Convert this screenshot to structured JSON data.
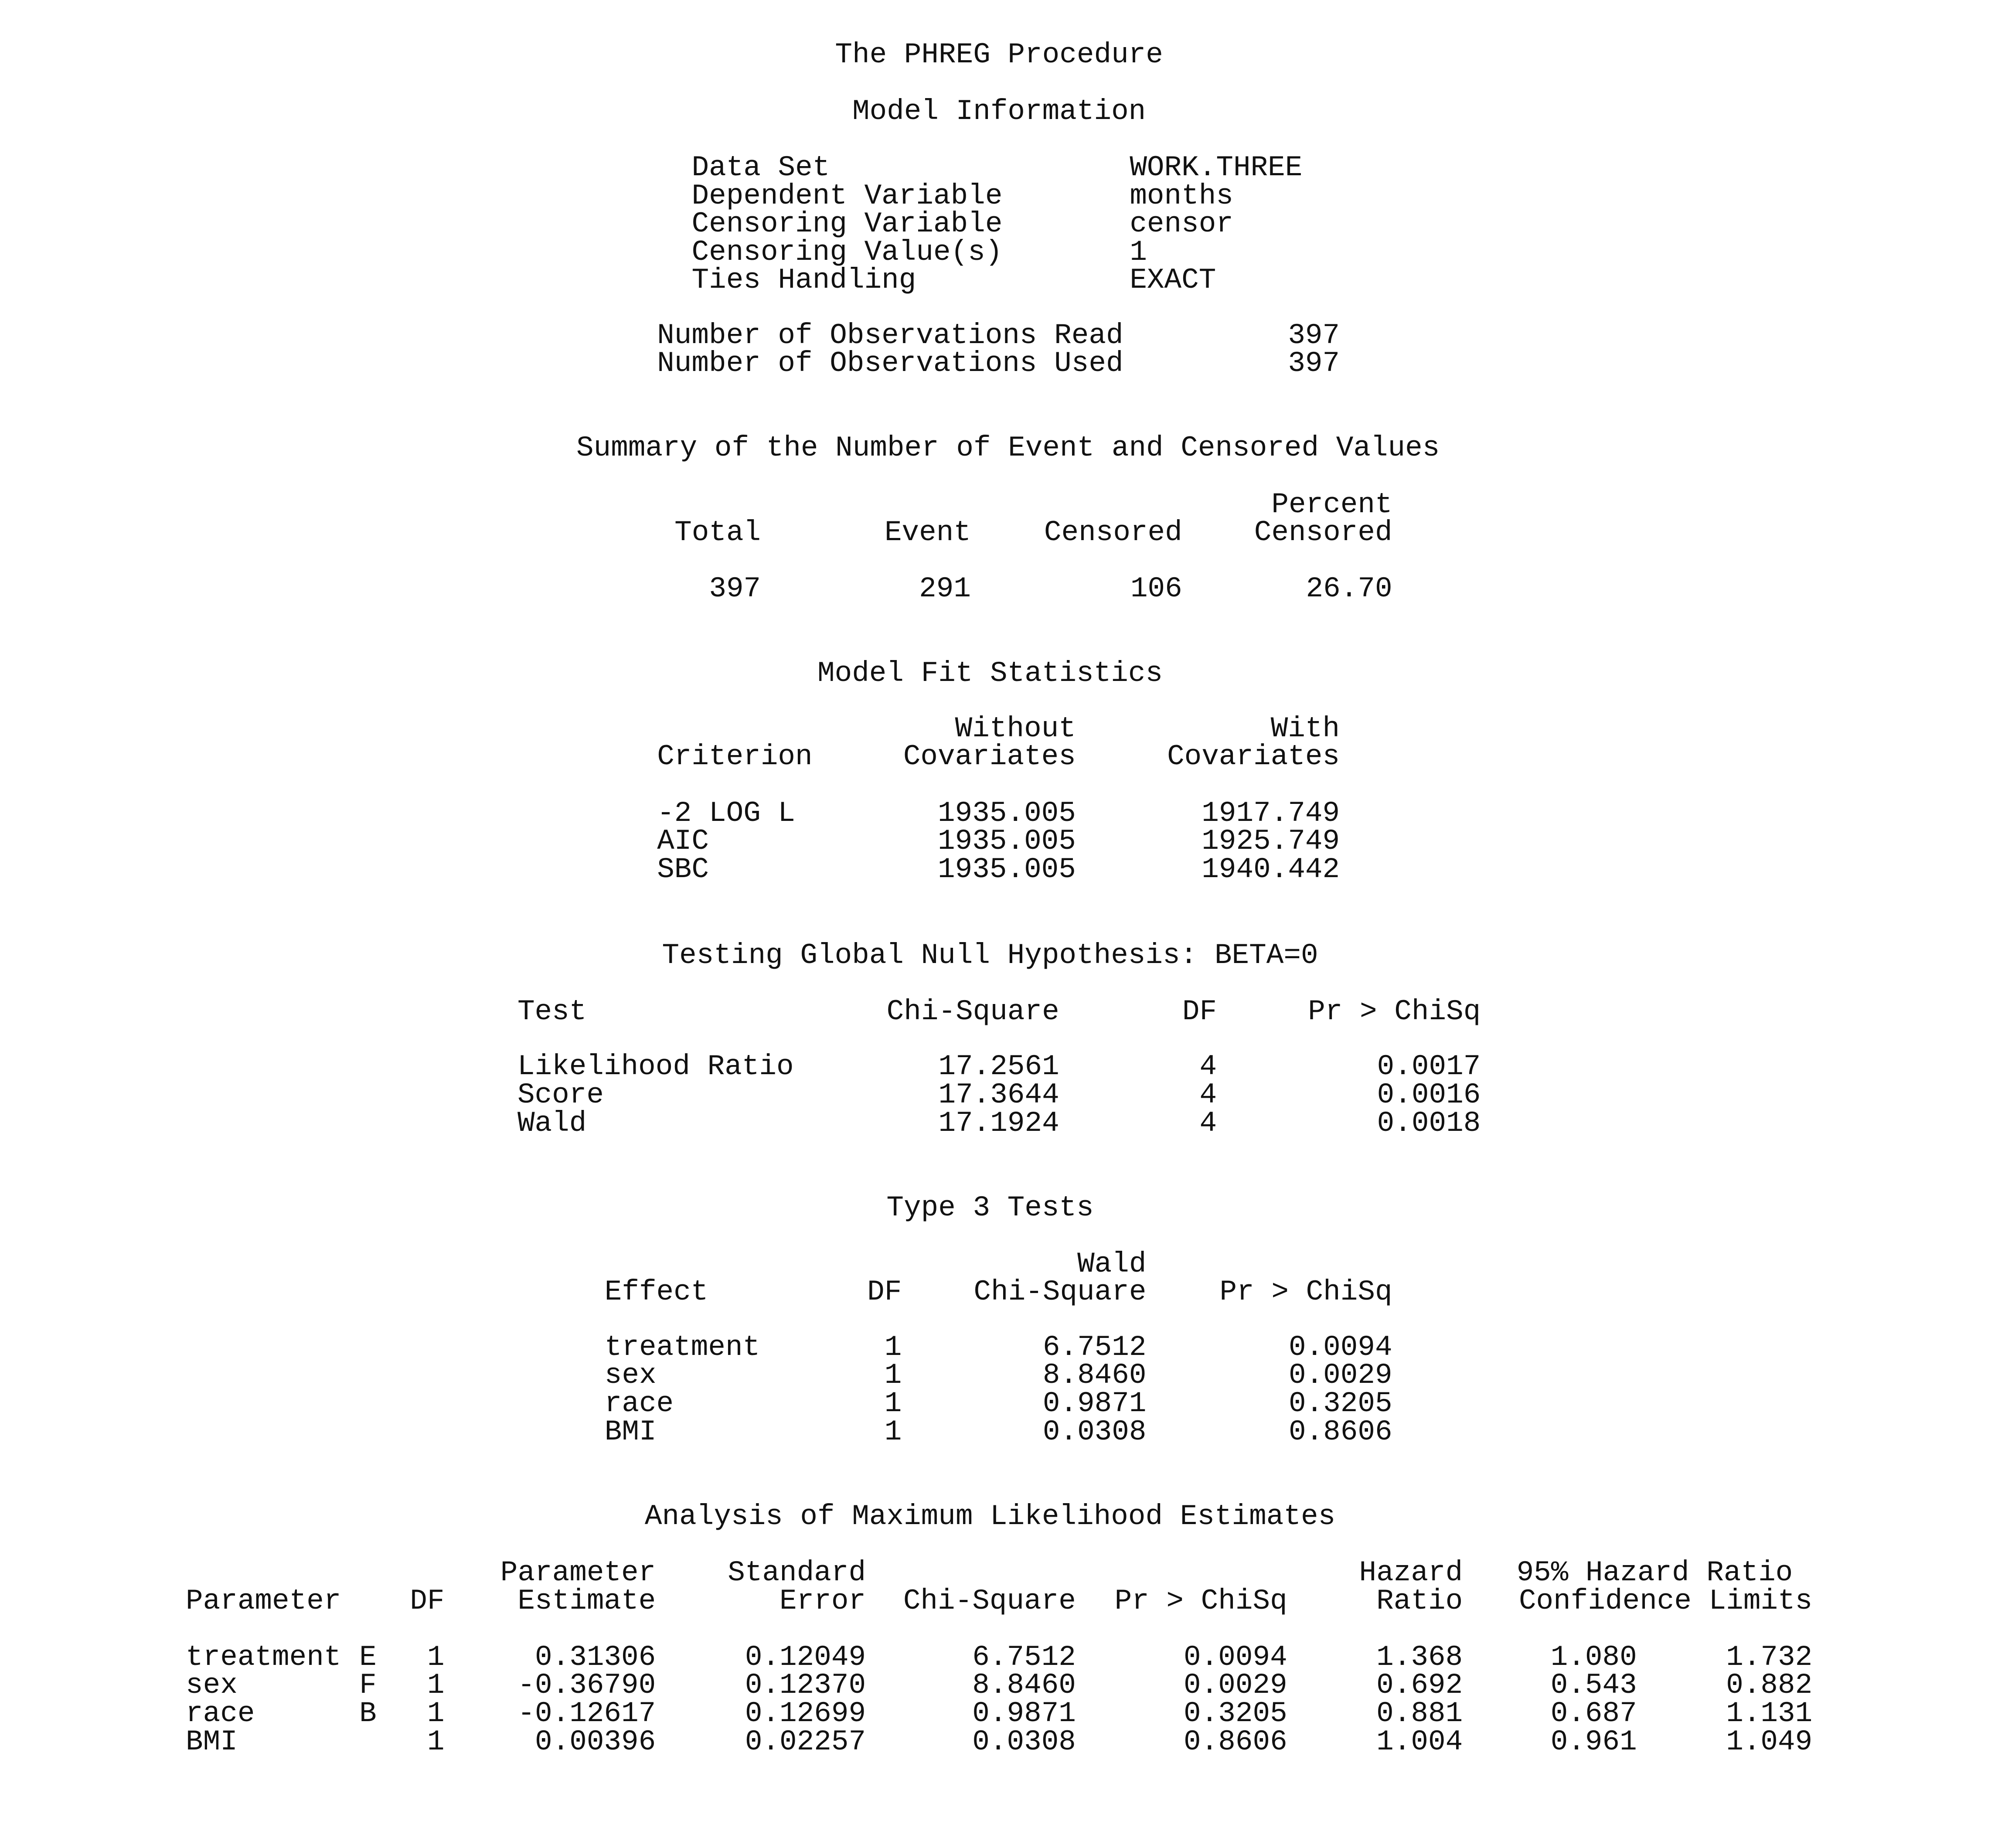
{
  "title": "The PHREG Procedure",
  "model_info": {
    "heading": "Model Information",
    "rows": [
      {
        "label": "Data Set",
        "value": "WORK.THREE"
      },
      {
        "label": "Dependent Variable",
        "value": "months"
      },
      {
        "label": "Censoring Variable",
        "value": "censor"
      },
      {
        "label": "Censoring Value(s)",
        "value": "1"
      },
      {
        "label": "Ties Handling",
        "value": "EXACT"
      }
    ],
    "obs": [
      {
        "label": "Number of Observations Read",
        "value": "397"
      },
      {
        "label": "Number of Observations Used",
        "value": "397"
      }
    ]
  },
  "summary": {
    "heading": "Summary of the Number of Event and Censored Values",
    "headers": {
      "total": "Total",
      "event": "Event",
      "censored": "Censored",
      "percent_top": "Percent",
      "percent_bottom": "Censored"
    },
    "values": {
      "total": "397",
      "event": "291",
      "censored": "106",
      "percent": "26.70"
    }
  },
  "fit": {
    "heading": "Model Fit Statistics",
    "headers": {
      "criterion": "Criterion",
      "without_top": "Without",
      "without_bottom": "Covariates",
      "with_top": "With",
      "with_bottom": "Covariates"
    },
    "rows": [
      {
        "criterion": "-2 LOG L",
        "without": "1935.005",
        "with": "1917.749"
      },
      {
        "criterion": "AIC",
        "without": "1935.005",
        "with": "1925.749"
      },
      {
        "criterion": "SBC",
        "without": "1935.005",
        "with": "1940.442"
      }
    ]
  },
  "global": {
    "heading": "Testing Global Null Hypothesis: BETA=0",
    "headers": {
      "test": "Test",
      "chisq": "Chi-Square",
      "df": "DF",
      "p": "Pr > ChiSq"
    },
    "rows": [
      {
        "test": "Likelihood Ratio",
        "chisq": "17.2561",
        "df": "4",
        "p": "0.0017"
      },
      {
        "test": "Score",
        "chisq": "17.3644",
        "df": "4",
        "p": "0.0016"
      },
      {
        "test": "Wald",
        "chisq": "17.1924",
        "df": "4",
        "p": "0.0018"
      }
    ]
  },
  "type3": {
    "heading": "Type 3 Tests",
    "headers": {
      "effect": "Effect",
      "df": "DF",
      "chisq_top": "Wald",
      "chisq_bottom": "Chi-Square",
      "p": "Pr > ChiSq"
    },
    "rows": [
      {
        "effect": "treatment",
        "df": "1",
        "chisq": "6.7512",
        "p": "0.0094"
      },
      {
        "effect": "sex",
        "df": "1",
        "chisq": "8.8460",
        "p": "0.0029"
      },
      {
        "effect": "race",
        "df": "1",
        "chisq": "0.9871",
        "p": "0.3205"
      },
      {
        "effect": "BMI",
        "df": "1",
        "chisq": "0.0308",
        "p": "0.8606"
      }
    ]
  },
  "mle": {
    "heading": "Analysis of Maximum Likelihood Estimates",
    "headers": {
      "parameter": "Parameter",
      "df": "DF",
      "est_top": "Parameter",
      "est_bottom": "Estimate",
      "se_top": "Standard",
      "se_bottom": "Error",
      "chisq": "Chi-Square",
      "p": "Pr > ChiSq",
      "hr_top": "Hazard",
      "hr_bottom": "Ratio",
      "ci_top": "95% Hazard Ratio",
      "ci_bottom": "Confidence Limits"
    },
    "rows": [
      {
        "parameter": "treatment",
        "level": "E",
        "df": "1",
        "est": "0.31306",
        "se": "0.12049",
        "chisq": "6.7512",
        "p": "0.0094",
        "hr": "1.368",
        "lcl": "1.080",
        "ucl": "1.732"
      },
      {
        "parameter": "sex",
        "level": "F",
        "df": "1",
        "est": "-0.36790",
        "se": "0.12370",
        "chisq": "8.8460",
        "p": "0.0029",
        "hr": "0.692",
        "lcl": "0.543",
        "ucl": "0.882"
      },
      {
        "parameter": "race",
        "level": "B",
        "df": "1",
        "est": "-0.12617",
        "se": "0.12699",
        "chisq": "0.9871",
        "p": "0.3205",
        "hr": "0.881",
        "lcl": "0.687",
        "ucl": "1.131"
      },
      {
        "parameter": "BMI",
        "level": "",
        "df": "1",
        "est": "0.00396",
        "se": "0.02257",
        "chisq": "0.0308",
        "p": "0.8606",
        "hr": "1.004",
        "lcl": "0.961",
        "ucl": "1.049"
      }
    ]
  }
}
